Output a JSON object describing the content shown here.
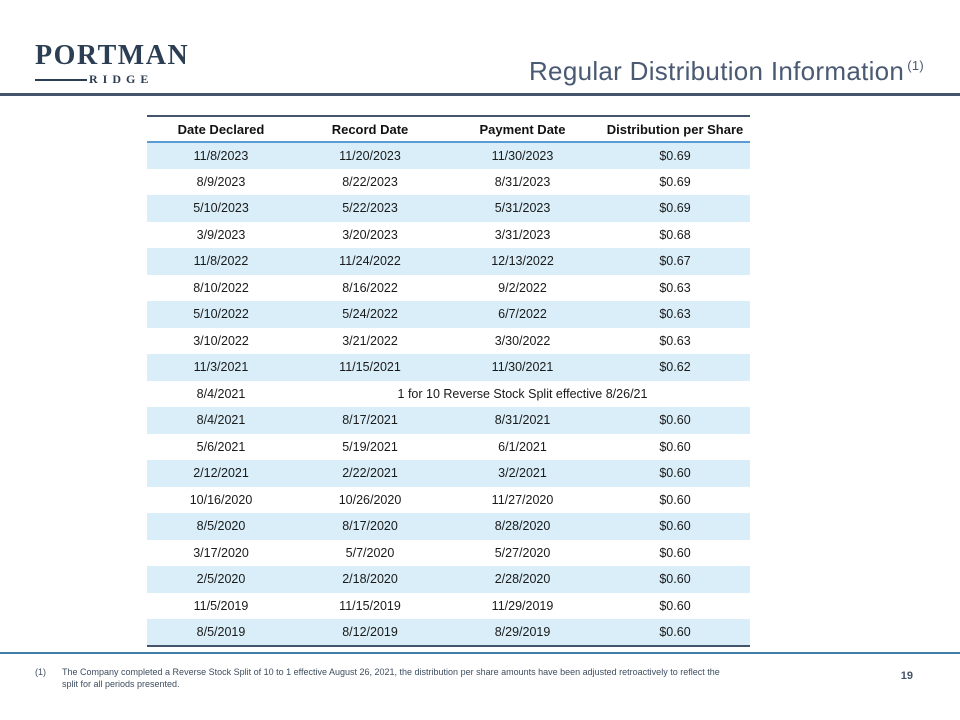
{
  "logo": {
    "primary": "PORTMAN",
    "secondary": "RIDGE"
  },
  "header": {
    "title": "Regular Distribution Information",
    "title_superscript": "(1)"
  },
  "table": {
    "columns": [
      "Date Declared",
      "Record Date",
      "Payment Date",
      "Distribution per Share"
    ],
    "rows": [
      {
        "date_declared": "11/8/2023",
        "record_date": "11/20/2023",
        "payment_date": "11/30/2023",
        "distribution_per_share": "$0.69"
      },
      {
        "date_declared": "8/9/2023",
        "record_date": "8/22/2023",
        "payment_date": "8/31/2023",
        "distribution_per_share": "$0.69"
      },
      {
        "date_declared": "5/10/2023",
        "record_date": "5/22/2023",
        "payment_date": "5/31/2023",
        "distribution_per_share": "$0.69"
      },
      {
        "date_declared": "3/9/2023",
        "record_date": "3/20/2023",
        "payment_date": "3/31/2023",
        "distribution_per_share": "$0.68"
      },
      {
        "date_declared": "11/8/2022",
        "record_date": "11/24/2022",
        "payment_date": "12/13/2022",
        "distribution_per_share": "$0.67"
      },
      {
        "date_declared": "8/10/2022",
        "record_date": "8/16/2022",
        "payment_date": "9/2/2022",
        "distribution_per_share": "$0.63"
      },
      {
        "date_declared": "5/10/2022",
        "record_date": "5/24/2022",
        "payment_date": "6/7/2022",
        "distribution_per_share": "$0.63"
      },
      {
        "date_declared": "3/10/2022",
        "record_date": "3/21/2022",
        "payment_date": "3/30/2022",
        "distribution_per_share": "$0.63"
      },
      {
        "date_declared": "11/3/2021",
        "record_date": "11/15/2021",
        "payment_date": "11/30/2021",
        "distribution_per_share": "$0.62"
      },
      {
        "date_declared": "8/4/2021",
        "note": "1 for 10 Reverse Stock Split effective 8/26/21"
      },
      {
        "date_declared": "8/4/2021",
        "record_date": "8/17/2021",
        "payment_date": "8/31/2021",
        "distribution_per_share": "$0.60"
      },
      {
        "date_declared": "5/6/2021",
        "record_date": "5/19/2021",
        "payment_date": "6/1/2021",
        "distribution_per_share": "$0.60"
      },
      {
        "date_declared": "2/12/2021",
        "record_date": "2/22/2021",
        "payment_date": "3/2/2021",
        "distribution_per_share": "$0.60"
      },
      {
        "date_declared": "10/16/2020",
        "record_date": "10/26/2020",
        "payment_date": "11/27/2020",
        "distribution_per_share": "$0.60"
      },
      {
        "date_declared": "8/5/2020",
        "record_date": "8/17/2020",
        "payment_date": "8/28/2020",
        "distribution_per_share": "$0.60"
      },
      {
        "date_declared": "3/17/2020",
        "record_date": "5/7/2020",
        "payment_date": "5/27/2020",
        "distribution_per_share": "$0.60"
      },
      {
        "date_declared": "2/5/2020",
        "record_date": "2/18/2020",
        "payment_date": "2/28/2020",
        "distribution_per_share": "$0.60"
      },
      {
        "date_declared": "11/5/2019",
        "record_date": "11/15/2019",
        "payment_date": "11/29/2019",
        "distribution_per_share": "$0.60"
      },
      {
        "date_declared": "8/5/2019",
        "record_date": "8/12/2019",
        "payment_date": "8/29/2019",
        "distribution_per_share": "$0.60"
      }
    ]
  },
  "footer": {
    "footnote_marker": "(1)",
    "footnote_text": "The Company completed a Reverse Stock Split of 10 to 1 effective August 26, 2021, the distribution per share amounts have been adjusted retroactively to reflect the split for all periods presented.",
    "page_number": "19"
  },
  "colors": {
    "brand_navy": "#2c3e54",
    "title_slate": "#4a5a73",
    "row_highlight_blue": "#d9eef9",
    "table_border_navy": "#44546a",
    "header_underline_blue": "#5b9bd5",
    "footer_line_blue": "#3e7fa5"
  }
}
